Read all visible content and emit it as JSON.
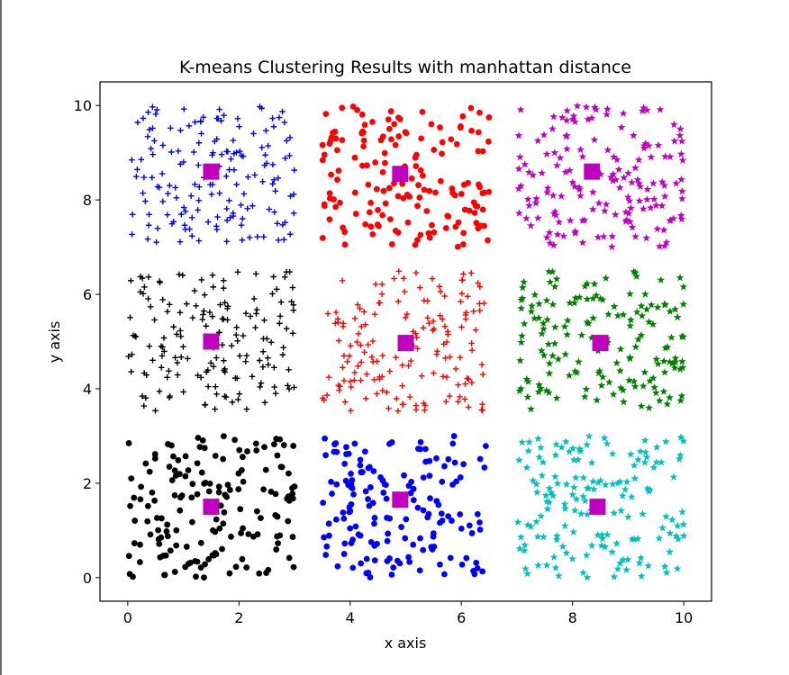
{
  "chart_data": {
    "type": "scatter",
    "title": "K-means Clustering Results with manhattan distance",
    "xlabel": "x axis",
    "ylabel": "y axis",
    "xlim": [
      -0.5,
      10.5
    ],
    "ylim": [
      -0.5,
      10.5
    ],
    "xticks": [
      "0",
      "2",
      "4",
      "6",
      "8",
      "10"
    ],
    "yticks": [
      "0",
      "2",
      "4",
      "6",
      "8",
      "10"
    ],
    "grid": false,
    "clusters": [
      {
        "marker": "plus",
        "color": "#0000ff",
        "x_range": [
          0,
          3
        ],
        "y_range": [
          7.1,
          10
        ],
        "points": 160,
        "centroid": [
          1.5,
          8.6
        ]
      },
      {
        "marker": "circle",
        "color": "#ff0000",
        "x_range": [
          3.5,
          6.5
        ],
        "y_range": [
          7,
          10
        ],
        "points": 160,
        "centroid": [
          4.9,
          8.55
        ]
      },
      {
        "marker": "star",
        "color": "#bf00bf",
        "x_range": [
          7,
          10
        ],
        "y_range": [
          7,
          10
        ],
        "points": 160,
        "centroid": [
          8.35,
          8.6
        ]
      },
      {
        "marker": "plus",
        "color": "#000000",
        "x_range": [
          0,
          3
        ],
        "y_range": [
          3.5,
          6.5
        ],
        "points": 160,
        "centroid": [
          1.5,
          5.0
        ]
      },
      {
        "marker": "plus",
        "color": "#ff0000",
        "x_range": [
          3.5,
          6.5
        ],
        "y_range": [
          3.5,
          6.5
        ],
        "points": 160,
        "centroid": [
          5.0,
          4.97
        ]
      },
      {
        "marker": "star",
        "color": "#008000",
        "x_range": [
          7,
          10
        ],
        "y_range": [
          3.5,
          6.5
        ],
        "points": 160,
        "centroid": [
          8.5,
          4.97
        ]
      },
      {
        "marker": "circle",
        "color": "#000000",
        "x_range": [
          0,
          3
        ],
        "y_range": [
          0,
          3
        ],
        "points": 160,
        "centroid": [
          1.5,
          1.5
        ]
      },
      {
        "marker": "circle",
        "color": "#0000ff",
        "x_range": [
          3.5,
          6.5
        ],
        "y_range": [
          0,
          3
        ],
        "points": 160,
        "centroid": [
          4.9,
          1.65
        ]
      },
      {
        "marker": "star",
        "color": "#00bfbf",
        "x_range": [
          7,
          10
        ],
        "y_range": [
          0,
          3
        ],
        "points": 160,
        "centroid": [
          8.45,
          1.5
        ]
      }
    ],
    "centroid_color": "#bf00bf",
    "centroid_marker": "square"
  }
}
